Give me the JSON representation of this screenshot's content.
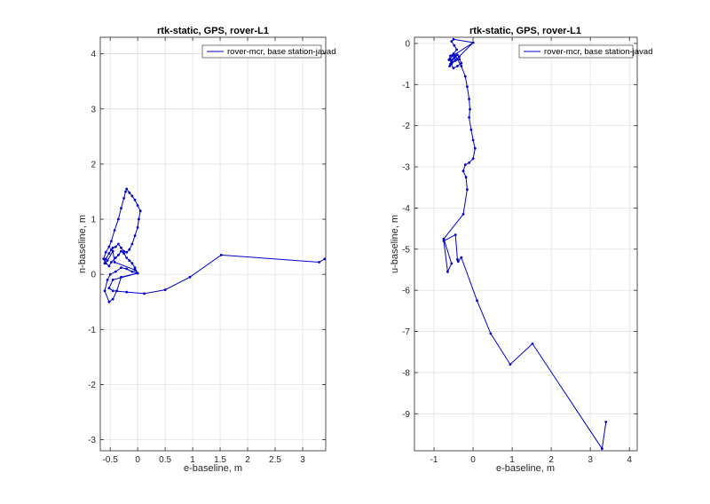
{
  "chart_data": [
    {
      "type": "line",
      "title": "rtk-static, GPS, rover-L1",
      "xlabel": "e-baseline, m",
      "ylabel": "n-baseline, m",
      "xlim": [
        -0.68,
        3.42
      ],
      "ylim": [
        -3.2,
        4.3
      ],
      "xticks": [
        -0.5,
        0,
        0.5,
        1,
        1.5,
        2,
        2.5,
        3
      ],
      "xticklabels": [
        "-0.5",
        "0",
        "0.5",
        "1",
        "1.5",
        "2",
        "2.5",
        "3"
      ],
      "yticks": [
        -3,
        -2,
        -1,
        0,
        1,
        2,
        3,
        4
      ],
      "yticklabels": [
        "-3",
        "-2",
        "-1",
        "0",
        "1",
        "2",
        "3",
        "4"
      ],
      "grid": true,
      "legend_position": "top-right",
      "series": [
        {
          "name": "rover-mcr, base station-javad",
          "color": "#0000cc",
          "marker": "point",
          "x": [
            0.0,
            -0.05,
            -0.42,
            -0.45,
            -0.55,
            -0.6,
            -0.58,
            -0.52,
            -0.48,
            -0.45,
            -0.4,
            -0.35,
            -0.3,
            -0.25,
            -0.2,
            -0.15,
            -0.1,
            -0.05,
            0.0,
            0.02,
            0.05,
            0.0,
            -0.05,
            -0.1,
            -0.15,
            -0.2,
            -0.22,
            -0.25,
            -0.3,
            -0.35,
            -0.42,
            -0.48,
            -0.52,
            -0.58,
            -0.62,
            -0.58,
            -0.52,
            -0.48,
            -0.4,
            -0.35,
            -0.3,
            -0.25,
            -0.2,
            -0.15,
            -0.1,
            -0.05,
            0.0,
            -0.1,
            -0.2,
            -0.3,
            -0.4,
            -0.5,
            -0.55,
            -0.6,
            -0.52,
            -0.45,
            -0.38,
            -0.3,
            0.0,
            -0.45,
            -0.52,
            -0.45,
            -0.2,
            0.12,
            0.5,
            0.95,
            1.52,
            3.3,
            3.4
          ],
          "y": [
            0.02,
            0.08,
            0.22,
            0.42,
            0.25,
            0.2,
            0.28,
            0.38,
            0.45,
            0.48,
            0.5,
            0.55,
            0.48,
            0.42,
            0.4,
            0.45,
            0.55,
            0.7,
            0.85,
            1.0,
            1.15,
            1.25,
            1.35,
            1.42,
            1.48,
            1.55,
            1.5,
            1.38,
            1.2,
            1.0,
            0.8,
            0.6,
            0.5,
            0.4,
            0.28,
            0.2,
            0.15,
            0.22,
            0.3,
            0.35,
            0.42,
            0.38,
            0.3,
            0.25,
            0.2,
            0.12,
            0.02,
            0.05,
            0.1,
            0.12,
            0.05,
            0.0,
            -0.1,
            -0.3,
            -0.5,
            -0.45,
            -0.3,
            -0.05,
            0.02,
            -0.1,
            -0.25,
            -0.3,
            -0.32,
            -0.35,
            -0.28,
            -0.05,
            0.35,
            0.22,
            0.28
          ]
        }
      ]
    },
    {
      "type": "line",
      "title": "rtk-static, GPS, rover-L1",
      "xlabel": "e-baseline, m",
      "ylabel": "u-baseline, m",
      "xlim": [
        -1.5,
        4.2
      ],
      "ylim": [
        -9.9,
        0.15
      ],
      "xticks": [
        -1,
        0,
        1,
        2,
        3,
        4
      ],
      "xticklabels": [
        "-1",
        "0",
        "1",
        "2",
        "3",
        "4"
      ],
      "yticks": [
        -9,
        -8,
        -7,
        -6,
        -5,
        -4,
        -3,
        -2,
        -1,
        0
      ],
      "yticklabels": [
        "-9",
        "-8",
        "-7",
        "-6",
        "-5",
        "-4",
        "-3",
        "-2",
        "-1",
        "0"
      ],
      "grid": true,
      "legend_position": "top-right",
      "series": [
        {
          "name": "rover-mcr, base station-javad",
          "color": "#0000cc",
          "marker": "point",
          "x": [
            0.0,
            -0.5,
            -0.55,
            -0.48,
            -0.42,
            -0.5,
            -0.58,
            -0.62,
            -0.55,
            -0.48,
            -0.4,
            -0.35,
            -0.45,
            -0.55,
            -0.6,
            0.0,
            -0.52,
            -0.6,
            -0.55,
            -0.45,
            -0.35,
            -0.3,
            -0.4,
            -0.5,
            -0.58,
            -0.55,
            -0.45,
            -0.3,
            -0.2,
            -0.15,
            -0.1,
            -0.08,
            -0.1,
            -0.05,
            0.0,
            0.05,
            0.0,
            -0.1,
            -0.2,
            -0.25,
            -0.18,
            -0.15,
            -0.25,
            -0.75,
            -0.55,
            -0.65,
            -0.75,
            -0.45,
            -0.4,
            -0.38,
            -0.3,
            0.1,
            0.45,
            0.95,
            1.52,
            3.3,
            3.4
          ],
          "y": [
            0.02,
            0.1,
            0.05,
            -0.05,
            -0.15,
            -0.25,
            -0.3,
            -0.4,
            -0.45,
            -0.35,
            -0.28,
            -0.32,
            -0.4,
            -0.5,
            -0.55,
            0.02,
            -0.3,
            -0.38,
            -0.45,
            -0.42,
            -0.38,
            -0.48,
            -0.55,
            -0.6,
            -0.5,
            -0.4,
            -0.3,
            -0.55,
            -0.8,
            -1.05,
            -1.35,
            -1.6,
            -1.8,
            -2.1,
            -2.35,
            -2.55,
            -2.8,
            -2.9,
            -2.95,
            -3.1,
            -3.25,
            -3.55,
            -4.15,
            -4.75,
            -5.35,
            -5.55,
            -4.8,
            -4.65,
            -5.25,
            -5.3,
            -5.2,
            -6.25,
            -7.05,
            -7.8,
            -7.3,
            -9.85,
            -9.2
          ]
        }
      ]
    }
  ]
}
